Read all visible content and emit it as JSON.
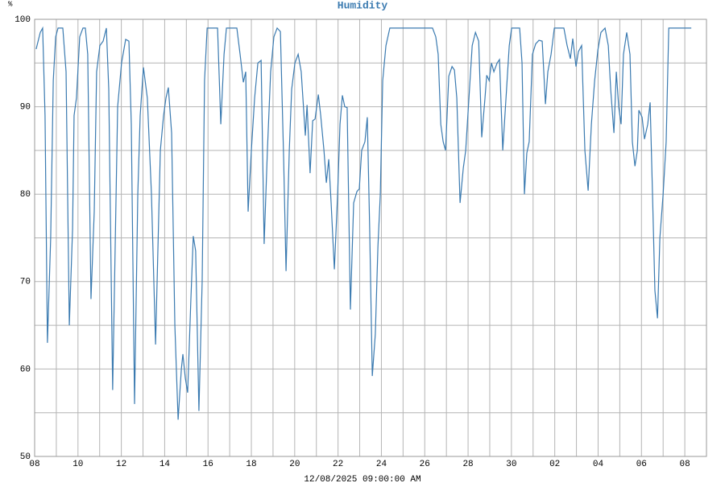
{
  "chart_data": {
    "type": "line",
    "title": "Humidity",
    "y_unit": "%",
    "xlabel": "12/08/2025 09:00:00 AM",
    "color": "#3a7ab0",
    "xlim": [
      0,
      31
    ],
    "ylim": [
      50,
      100
    ],
    "xticks": [
      {
        "value": 0,
        "label": "08"
      },
      {
        "value": 2,
        "label": "10"
      },
      {
        "value": 4,
        "label": "12"
      },
      {
        "value": 6,
        "label": "14"
      },
      {
        "value": 8,
        "label": "16"
      },
      {
        "value": 10,
        "label": "18"
      },
      {
        "value": 12,
        "label": "20"
      },
      {
        "value": 14,
        "label": "22"
      },
      {
        "value": 16,
        "label": "24"
      },
      {
        "value": 18,
        "label": "26"
      },
      {
        "value": 20,
        "label": "28"
      },
      {
        "value": 22,
        "label": "30"
      },
      {
        "value": 24,
        "label": "02"
      },
      {
        "value": 26,
        "label": "04"
      },
      {
        "value": 28,
        "label": "06"
      },
      {
        "value": 30,
        "label": "08"
      }
    ],
    "xgrid": [
      1,
      3,
      5,
      7,
      9,
      11,
      13,
      15,
      17,
      19,
      21,
      23,
      25,
      27,
      29
    ],
    "yticks": [
      50,
      60,
      70,
      80,
      90,
      100
    ],
    "ygrid": [
      55,
      65,
      75,
      85,
      95
    ],
    "grid": true,
    "x": [
      0.07,
      0.26,
      0.37,
      0.48,
      0.59,
      0.74,
      0.86,
      0.97,
      1.08,
      1.3,
      1.45,
      1.6,
      1.75,
      1.82,
      1.93,
      2.08,
      2.23,
      2.34,
      2.45,
      2.6,
      2.75,
      2.86,
      3.01,
      3.16,
      3.31,
      3.42,
      3.6,
      3.83,
      4.01,
      4.2,
      4.35,
      4.46,
      4.61,
      4.76,
      4.87,
      5.02,
      5.2,
      5.39,
      5.58,
      5.8,
      5.95,
      6.06,
      6.17,
      6.32,
      6.47,
      6.62,
      6.77,
      6.84,
      6.95,
      7.06,
      7.21,
      7.32,
      7.43,
      7.58,
      7.73,
      7.84,
      7.96,
      8.25,
      8.44,
      8.59,
      8.74,
      8.85,
      9.18,
      9.33,
      9.48,
      9.63,
      9.74,
      9.85,
      10.0,
      10.15,
      10.3,
      10.45,
      10.59,
      10.74,
      10.89,
      11.04,
      11.19,
      11.34,
      11.49,
      11.6,
      11.75,
      11.86,
      12.01,
      12.16,
      12.3,
      12.49,
      12.57,
      12.71,
      12.83,
      12.94,
      13.09,
      13.2,
      13.35,
      13.46,
      13.57,
      13.68,
      13.83,
      13.98,
      14.09,
      14.2,
      14.31,
      14.42,
      14.57,
      14.72,
      14.87,
      14.98,
      15.09,
      15.24,
      15.35,
      15.46,
      15.58,
      15.72,
      15.84,
      15.95,
      16.06,
      16.21,
      16.39,
      16.99,
      17.73,
      18.36,
      18.51,
      18.62,
      18.74,
      18.85,
      18.96,
      19.11,
      19.26,
      19.37,
      19.48,
      19.63,
      19.78,
      19.89,
      20.04,
      20.19,
      20.34,
      20.49,
      20.63,
      20.78,
      20.86,
      20.97,
      21.08,
      21.19,
      21.34,
      21.45,
      21.6,
      21.75,
      21.9,
      22.01,
      22.38,
      22.49,
      22.6,
      22.71,
      22.82,
      22.97,
      23.12,
      23.27,
      23.42,
      23.57,
      23.68,
      23.83,
      23.98,
      24.42,
      24.57,
      24.72,
      24.83,
      24.98,
      25.09,
      25.24,
      25.39,
      25.54,
      25.69,
      25.84,
      25.99,
      26.13,
      26.32,
      26.47,
      26.58,
      26.73,
      26.84,
      26.95,
      27.06,
      27.17,
      27.32,
      27.47,
      27.58,
      27.7,
      27.81,
      27.88,
      28.03,
      28.14,
      28.29,
      28.4,
      28.51,
      28.62,
      28.74,
      28.85,
      29.0,
      29.14,
      29.26,
      29.63,
      30.3
    ],
    "values": [
      96.6,
      98.5,
      99,
      89,
      63,
      75,
      93,
      98,
      99,
      99,
      94,
      65,
      76,
      89,
      91,
      98,
      99,
      99,
      96,
      68,
      78,
      94,
      97,
      97.5,
      99,
      92,
      57.6,
      90,
      95,
      97.7,
      97.5,
      88,
      56,
      80,
      89,
      94.5,
      91,
      80,
      62.8,
      85,
      89,
      91,
      92.2,
      87,
      65,
      54.2,
      60,
      61.7,
      59,
      57.3,
      68,
      75.2,
      73.5,
      55.2,
      70,
      93,
      99,
      99,
      99,
      88,
      96,
      99,
      99,
      99,
      96,
      92.8,
      94,
      78,
      85,
      91,
      95,
      95.3,
      74.3,
      85,
      94,
      98,
      99,
      98.6,
      84,
      71.2,
      85,
      92,
      95,
      96,
      94,
      86.7,
      90.2,
      82.4,
      88.4,
      88.6,
      91.4,
      89,
      85,
      81.3,
      84,
      79,
      71.4,
      80,
      88,
      91.3,
      90,
      89.9,
      66.8,
      79,
      80.3,
      80.6,
      85,
      86,
      88.8,
      76,
      59.2,
      64,
      74,
      80,
      93,
      97,
      99,
      99,
      99,
      99,
      98,
      96,
      88,
      86,
      85,
      93.5,
      94.6,
      94.2,
      91,
      79,
      83,
      85,
      91,
      97,
      98.5,
      97.5,
      86.5,
      91,
      93.6,
      93,
      95,
      94,
      95,
      95.4,
      85,
      91,
      97,
      99,
      99,
      95,
      80,
      84.7,
      86,
      96,
      97.2,
      97.6,
      97.5,
      90.3,
      94,
      96,
      99,
      99,
      97,
      95.5,
      97.8,
      94.6,
      96.3,
      97,
      85,
      80.4,
      88,
      93,
      96.5,
      98.5,
      99,
      97,
      92,
      87,
      94,
      90,
      88,
      96,
      98.5,
      96,
      86,
      83.2,
      85,
      89.6,
      88.8,
      86.3,
      88,
      90.5,
      80,
      69,
      65.8,
      75,
      80,
      86,
      99,
      99,
      99
    ]
  }
}
